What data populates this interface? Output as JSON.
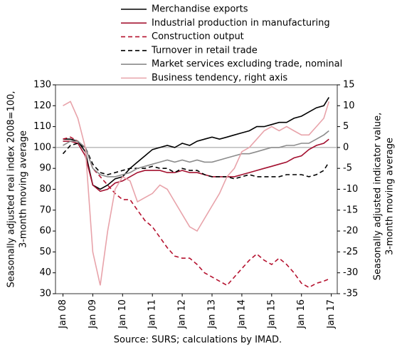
{
  "chart_data": {
    "type": "line",
    "ylabel": [
      "Seasonally adjusted real index 2008=100,",
      "3-month moving average"
    ],
    "y2label": [
      "Seasonally adjusted indicator value,",
      "3-month moving average"
    ],
    "source": "Source: SURS; calculations by IMAD.",
    "x": [
      2008,
      2008.25,
      2008.5,
      2008.75,
      2009,
      2009.25,
      2009.5,
      2009.75,
      2010,
      2010.25,
      2010.5,
      2010.75,
      2011,
      2011.25,
      2011.5,
      2011.75,
      2012,
      2012.25,
      2012.5,
      2012.75,
      2013,
      2013.25,
      2013.5,
      2013.75,
      2014,
      2014.25,
      2014.5,
      2014.75,
      2015,
      2015.25,
      2015.5,
      2015.75,
      2016,
      2016.25,
      2016.5,
      2016.75,
      2016.92
    ],
    "xlim": [
      2007.75,
      2017.2
    ],
    "xticks": [
      {
        "value": 2008,
        "label": "Jan 08"
      },
      {
        "value": 2009,
        "label": "Jan 09"
      },
      {
        "value": 2010,
        "label": "Jan 10"
      },
      {
        "value": 2011,
        "label": "Jan 11"
      },
      {
        "value": 2012,
        "label": "Jan 12"
      },
      {
        "value": 2013,
        "label": "Jan 13"
      },
      {
        "value": 2014,
        "label": "Jan 14"
      },
      {
        "value": 2015,
        "label": "Jan 15"
      },
      {
        "value": 2016,
        "label": "Jan 16"
      },
      {
        "value": 2017,
        "label": "Jan 17"
      }
    ],
    "ylim": [
      30,
      130
    ],
    "yticks": [
      30,
      40,
      50,
      60,
      70,
      80,
      90,
      100,
      110,
      120,
      130
    ],
    "y2lim": [
      -35,
      15
    ],
    "y2ticks": [
      -35,
      -30,
      -25,
      -20,
      -15,
      -10,
      -5,
      0,
      5,
      10,
      15
    ],
    "reference_line": 100,
    "series": [
      {
        "name": "Merchandise exports",
        "color": "#000000",
        "dashed": false,
        "values": [
          104,
          104,
          103,
          98,
          82,
          80,
          82,
          85,
          86,
          90,
          93,
          96,
          99,
          100,
          101,
          100,
          102,
          101,
          103,
          104,
          105,
          104,
          105,
          106,
          107,
          108,
          110,
          110,
          111,
          112,
          112,
          114,
          115,
          117,
          119,
          120,
          124
        ]
      },
      {
        "name": "Industrial production in manufacturing",
        "color": "#a3102f",
        "dashed": false,
        "values": [
          103,
          103,
          102,
          96,
          82,
          79,
          80,
          83,
          84,
          86,
          88,
          89,
          89,
          89,
          88,
          88,
          89,
          88,
          88,
          87,
          86,
          86,
          86,
          86,
          87,
          88,
          89,
          90,
          91,
          92,
          93,
          95,
          96,
          99,
          101,
          102,
          104
        ]
      },
      {
        "name": "Construction output",
        "color": "#b5122f",
        "dashed": true,
        "values": [
          104,
          105,
          103,
          100,
          90,
          86,
          82,
          78,
          75,
          75,
          70,
          65,
          62,
          57,
          52,
          48,
          47,
          47,
          44,
          40,
          38,
          36,
          34,
          38,
          42,
          46,
          49,
          46,
          44,
          47,
          44,
          40,
          35,
          33,
          35,
          36,
          37
        ]
      },
      {
        "name": "Turnover in retail trade",
        "color": "#000000",
        "dashed": true,
        "values": [
          97,
          101,
          102,
          100,
          92,
          88,
          87,
          88,
          89,
          90,
          90,
          90,
          91,
          90,
          90,
          88,
          90,
          89,
          89,
          87,
          86,
          86,
          86,
          85,
          86,
          87,
          86,
          86,
          86,
          86,
          87,
          87,
          87,
          86,
          87,
          89,
          93
        ]
      },
      {
        "name": "Market services excluding trade, nominal",
        "color": "#8c8c8c",
        "dashed": false,
        "values": [
          101,
          103,
          103,
          100,
          90,
          87,
          86,
          86,
          87,
          88,
          90,
          91,
          92,
          93,
          94,
          93,
          94,
          93,
          94,
          93,
          93,
          94,
          95,
          96,
          97,
          97,
          98,
          99,
          100,
          100,
          101,
          101,
          102,
          102,
          104,
          106,
          108
        ]
      },
      {
        "name": "Business tendency, right axis",
        "color": "#e8a3aa",
        "dashed": false,
        "axis": "y2",
        "values": [
          10,
          11,
          7,
          0,
          -25,
          -33,
          -20,
          -10,
          -7,
          -8,
          -13,
          -12,
          -11,
          -9,
          -10,
          -13,
          -16,
          -19,
          -20,
          -17,
          -14,
          -11,
          -7,
          -5,
          -1,
          0,
          2,
          4,
          5,
          4,
          5,
          4,
          3,
          3,
          5,
          7,
          11
        ]
      }
    ]
  }
}
